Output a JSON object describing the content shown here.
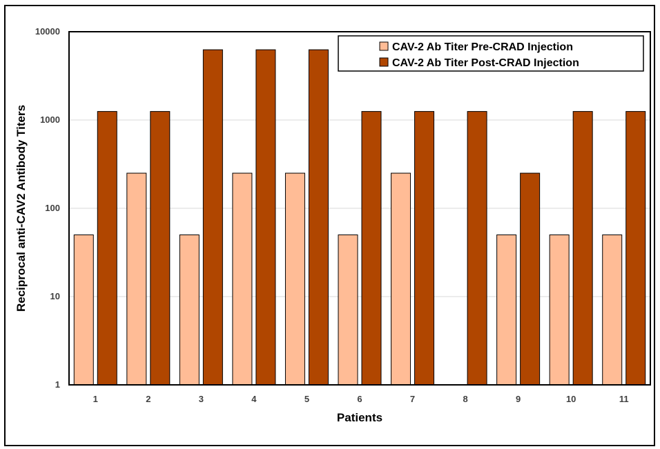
{
  "chart_data": {
    "type": "bar",
    "xlabel": "Patients",
    "ylabel": "Reciprocal anti-CAV2 Antibody Titers",
    "yscale": "log",
    "ylim": [
      1,
      10000
    ],
    "yticks": [
      "1",
      "10",
      "100",
      "1000",
      "10000"
    ],
    "grid": true,
    "legend_position": "top-right",
    "categories": [
      "1",
      "2",
      "3",
      "4",
      "5",
      "6",
      "7",
      "8",
      "9",
      "10",
      "11"
    ],
    "series": [
      {
        "name": "CAV-2 Ab Titer Pre-CRAD Injection",
        "color": "#FFBC96",
        "values": [
          50,
          250,
          50,
          250,
          250,
          50,
          250,
          1,
          50,
          50,
          50
        ]
      },
      {
        "name": "CAV-2 Ab Titer Post-CRAD Injection",
        "color": "#B04600",
        "values": [
          1250,
          1250,
          6250,
          6250,
          6250,
          1250,
          1250,
          1250,
          250,
          1250,
          1250
        ]
      }
    ]
  }
}
